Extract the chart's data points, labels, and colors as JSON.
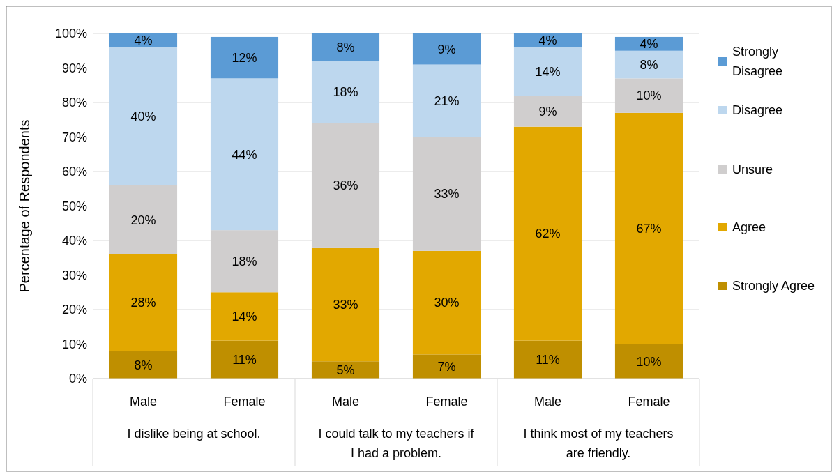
{
  "chart_data": {
    "type": "bar",
    "stacked": true,
    "ylabel": "Percentage of Respondents",
    "categories": [
      "Male",
      "Female",
      "Male",
      "Female",
      "Male",
      "Female"
    ],
    "annotations": [
      "I dislike being at school.",
      "I could talk to my teachers if I had a problem.",
      "I think most of my teachers are friendly."
    ],
    "series": [
      {
        "name": "Strongly Agree",
        "color": "#bf8f00",
        "values": [
          8,
          11,
          5,
          7,
          11,
          10
        ],
        "value_labels": [
          "8%",
          "11%",
          "5%",
          "7%",
          "11%",
          "10%"
        ]
      },
      {
        "name": "Agree",
        "color": "#e2a800",
        "values": [
          28,
          14,
          33,
          30,
          62,
          67
        ],
        "value_labels": [
          "28%",
          "14%",
          "33%",
          "30%",
          "62%",
          "67%"
        ]
      },
      {
        "name": "Unsure",
        "color": "#d0cece",
        "values": [
          20,
          18,
          36,
          33,
          9,
          10
        ],
        "value_labels": [
          "20%",
          "18%",
          "36%",
          "33%",
          "9%",
          "10%"
        ]
      },
      {
        "name": "Disagree",
        "color": "#bdd7ee",
        "values": [
          40,
          44,
          18,
          21,
          14,
          8
        ],
        "value_labels": [
          "40%",
          "44%",
          "18%",
          "21%",
          "14%",
          "8%"
        ]
      },
      {
        "name": "Strongly Disagree",
        "color": "#5b9bd5",
        "values": [
          4,
          12,
          8,
          9,
          4,
          4
        ],
        "value_labels": [
          "4%",
          "12%",
          "8%",
          "9%",
          "4%",
          "4%"
        ]
      }
    ],
    "ylim": [
      0,
      100
    ],
    "yticks": [
      {
        "value": 0,
        "label": "0%"
      },
      {
        "value": 10,
        "label": "10%"
      },
      {
        "value": 20,
        "label": "20%"
      },
      {
        "value": 30,
        "label": "30%"
      },
      {
        "value": 40,
        "label": "40%"
      },
      {
        "value": 50,
        "label": "50%"
      },
      {
        "value": 60,
        "label": "60%"
      },
      {
        "value": 70,
        "label": "70%"
      },
      {
        "value": 80,
        "label": "80%"
      },
      {
        "value": 90,
        "label": "90%"
      },
      {
        "value": 100,
        "label": "100%"
      }
    ],
    "grid": "y",
    "legend": "right"
  }
}
